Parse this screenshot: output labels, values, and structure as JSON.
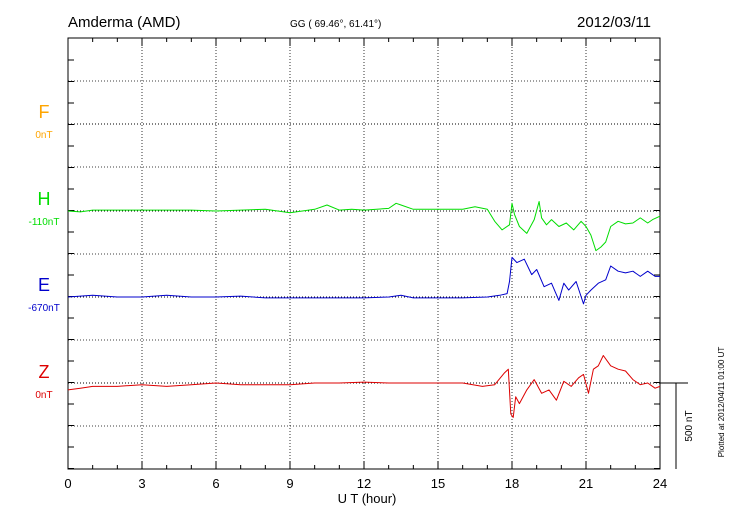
{
  "header": {
    "station": "Amderma (AMD)",
    "coords": "GG ( 69.46°,  61.41°)",
    "date": "2012/03/11"
  },
  "footer": {
    "plotted": "Plotted at 2012/04/11 01:00 UT"
  },
  "chart_data": {
    "type": "line",
    "xlabel": "U T (hour)",
    "xlim": [
      0,
      24
    ],
    "xticks": [
      "0",
      "3",
      "6",
      "9",
      "12",
      "15",
      "18",
      "21",
      "24"
    ],
    "grid": true,
    "scale_bar": {
      "label": "500 nT",
      "value": 500
    },
    "series": [
      {
        "name": "F",
        "baseline": "0nT",
        "color": "#ffa500",
        "x": [],
        "y": []
      },
      {
        "name": "H",
        "baseline": "-110nT",
        "color": "#00dd00",
        "x": [
          0,
          0.5,
          1,
          2,
          3,
          4,
          5,
          6,
          7,
          8,
          9,
          10,
          10.5,
          11,
          11.5,
          12,
          13,
          13.3,
          13.5,
          14,
          15,
          16,
          16.5,
          17,
          17.3,
          17.6,
          17.9,
          18.0,
          18.1,
          18.3,
          18.6,
          18.9,
          19.1,
          19.2,
          19.4,
          19.6,
          19.9,
          20.2,
          20.5,
          20.8,
          21.0,
          21.2,
          21.4,
          21.6,
          21.8,
          22.0,
          22.3,
          22.6,
          22.9,
          23.2,
          23.5,
          23.7,
          24
        ],
        "y": [
          0,
          -5,
          5,
          5,
          5,
          5,
          5,
          0,
          5,
          10,
          -10,
          10,
          35,
          5,
          10,
          5,
          15,
          45,
          35,
          10,
          10,
          10,
          25,
          10,
          -60,
          -110,
          -80,
          45,
          -20,
          -90,
          -130,
          -50,
          55,
          -40,
          -80,
          -50,
          -90,
          -70,
          -110,
          -60,
          -90,
          -140,
          -230,
          -210,
          -180,
          -90,
          -60,
          -75,
          -70,
          -40,
          -70,
          -50,
          -30
        ]
      },
      {
        "name": "E",
        "baseline": "-670nT",
        "color": "#0000cc",
        "x": [
          0,
          0.5,
          1,
          2,
          3,
          4,
          5,
          6,
          7,
          8,
          9,
          10,
          11,
          12,
          13,
          13.5,
          14,
          15,
          16,
          17,
          17.5,
          17.8,
          17.9,
          18.0,
          18.2,
          18.5,
          18.8,
          19.0,
          19.3,
          19.6,
          19.9,
          20.1,
          20.3,
          20.6,
          20.9,
          21.0,
          21.2,
          21.5,
          21.8,
          22.0,
          22.3,
          22.6,
          22.9,
          23.2,
          23.5,
          23.8,
          24
        ],
        "y": [
          0,
          5,
          10,
          0,
          0,
          10,
          0,
          0,
          5,
          -5,
          -5,
          -5,
          -5,
          -5,
          0,
          10,
          -5,
          -5,
          -5,
          0,
          10,
          20,
          90,
          230,
          200,
          220,
          130,
          160,
          60,
          80,
          -20,
          80,
          40,
          90,
          -40,
          10,
          40,
          80,
          100,
          180,
          150,
          140,
          150,
          120,
          150,
          120,
          120
        ]
      },
      {
        "name": "Z",
        "baseline": "0nT",
        "color": "#dd0000",
        "x": [
          0,
          0.5,
          1,
          2,
          3,
          4,
          5,
          6,
          7,
          8,
          9,
          10,
          11,
          12,
          13,
          14,
          15,
          16,
          16.8,
          17.3,
          17.7,
          17.85,
          17.95,
          18.05,
          18.15,
          18.3,
          18.6,
          18.9,
          19.2,
          19.5,
          19.8,
          20.1,
          20.4,
          20.7,
          20.9,
          21.1,
          21.3,
          21.5,
          21.7,
          22.0,
          22.3,
          22.6,
          22.9,
          23.2,
          23.5,
          23.8,
          24
        ],
        "y": [
          -40,
          -30,
          -20,
          -20,
          -10,
          -20,
          -10,
          0,
          -10,
          -10,
          -10,
          0,
          0,
          5,
          0,
          0,
          0,
          0,
          -20,
          -10,
          60,
          80,
          -180,
          -200,
          -80,
          -120,
          -40,
          20,
          -60,
          -40,
          -100,
          10,
          -20,
          30,
          50,
          -60,
          80,
          100,
          160,
          100,
          80,
          70,
          20,
          -10,
          0,
          -30,
          -20
        ]
      }
    ]
  }
}
